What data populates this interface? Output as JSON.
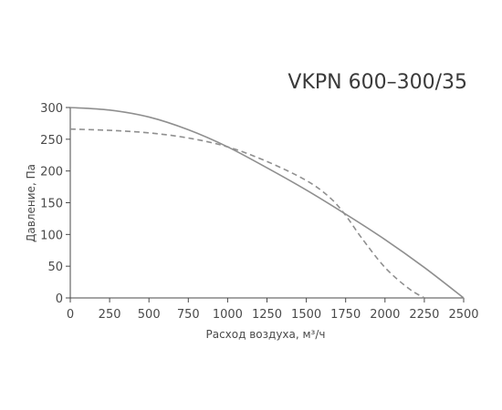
{
  "chart_data": {
    "type": "line",
    "title": "VKPN 600–300/35",
    "xlabel": "Расход воздуха, м³/ч",
    "ylabel": "Давление, Па",
    "xlim": [
      0,
      2500
    ],
    "ylim": [
      0,
      300
    ],
    "x_ticks": [
      "0",
      "250",
      "500",
      "750",
      "1000",
      "1250",
      "1500",
      "1750",
      "2000",
      "2250",
      "2500"
    ],
    "y_ticks": [
      "0",
      "50",
      "100",
      "150",
      "200",
      "250",
      "300"
    ],
    "grid": false,
    "series": [
      {
        "style": "solid",
        "color": "#8f8f8f",
        "x": [
          0,
          250,
          500,
          750,
          1000,
          1250,
          1500,
          1750,
          2000,
          2250,
          2500
        ],
        "y": [
          300,
          296,
          285,
          265,
          238,
          205,
          170,
          132,
          92,
          48,
          0
        ]
      },
      {
        "style": "dashed",
        "color": "#8f8f8f",
        "x": [
          0,
          250,
          500,
          750,
          1000,
          1250,
          1500,
          1650,
          1750,
          1850,
          2000,
          2150,
          2250
        ],
        "y": [
          266,
          264,
          260,
          252,
          238,
          215,
          185,
          158,
          130,
          95,
          48,
          15,
          0
        ]
      }
    ]
  }
}
